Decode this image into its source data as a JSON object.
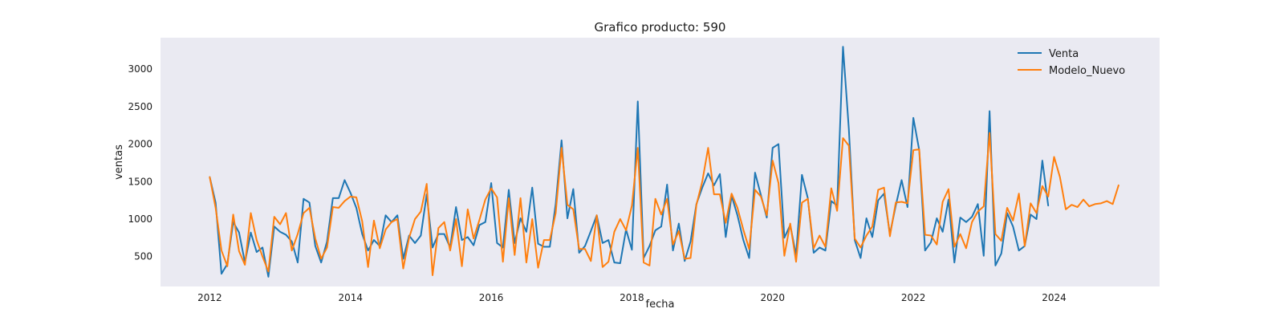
{
  "chart_data": {
    "type": "line",
    "title": "Grafico producto: 590",
    "xlabel": "fecha",
    "ylabel": "ventas",
    "xlim": [
      2011.3,
      2025.5
    ],
    "ylim": [
      100,
      3420
    ],
    "xticks": [
      2012,
      2014,
      2016,
      2018,
      2020,
      2022,
      2024
    ],
    "yticks": [
      500,
      1000,
      1500,
      2000,
      2500,
      3000
    ],
    "grid": false,
    "legend_position": "top-right",
    "colors": {
      "background": "#eaeaf2",
      "Venta": "#1f77b4",
      "Modelo_Nuevo": "#ff7f0e"
    },
    "x_start": 2012,
    "x_step_months": 1,
    "series": [
      {
        "name": "Venta",
        "values": [
          1560,
          1220,
          270,
          400,
          960,
          820,
          420,
          820,
          560,
          620,
          230,
          900,
          830,
          790,
          700,
          420,
          1270,
          1220,
          640,
          420,
          700,
          1280,
          1280,
          1520,
          1350,
          1150,
          800,
          580,
          720,
          640,
          1050,
          960,
          1050,
          470,
          780,
          680,
          780,
          1330,
          620,
          800,
          800,
          620,
          1160,
          720,
          760,
          650,
          920,
          960,
          1480,
          680,
          620,
          1390,
          680,
          1010,
          830,
          1420,
          670,
          630,
          630,
          1200,
          2050,
          1010,
          1400,
          550,
          640,
          840,
          1050,
          680,
          720,
          420,
          410,
          860,
          590,
          2570,
          480,
          640,
          850,
          900,
          1460,
          580,
          940,
          440,
          700,
          1200,
          1420,
          1610,
          1450,
          1600,
          760,
          1310,
          1050,
          720,
          480,
          1620,
          1320,
          1020,
          1950,
          2000,
          750,
          920,
          520,
          1590,
          1280,
          550,
          620,
          580,
          1240,
          1180,
          3300,
          2200,
          720,
          480,
          1010,
          760,
          1250,
          1340,
          800,
          1180,
          1520,
          1160,
          2350,
          1920,
          580,
          690,
          1010,
          830,
          1260,
          420,
          1020,
          960,
          1030,
          1200,
          510,
          2440,
          380,
          540,
          1080,
          900,
          580,
          640,
          1060,
          1000,
          1780,
          1180
        ]
      },
      {
        "name": "Modelo_Nuevo",
        "values": [
          1560,
          1150,
          580,
          370,
          1060,
          570,
          390,
          1080,
          720,
          500,
          300,
          1030,
          930,
          1080,
          580,
          800,
          1080,
          1150,
          740,
          470,
          620,
          1160,
          1150,
          1240,
          1300,
          1290,
          970,
          360,
          980,
          610,
          860,
          960,
          1000,
          340,
          750,
          1000,
          1100,
          1470,
          250,
          880,
          960,
          580,
          1000,
          370,
          1130,
          740,
          990,
          1260,
          1410,
          1290,
          430,
          1280,
          520,
          1280,
          420,
          1000,
          350,
          720,
          720,
          1080,
          1950,
          1190,
          1130,
          600,
          600,
          440,
          1050,
          360,
          430,
          830,
          1000,
          850,
          1180,
          1950,
          420,
          380,
          1270,
          1060,
          1270,
          660,
          840,
          470,
          480,
          1190,
          1500,
          1950,
          1330,
          1330,
          950,
          1340,
          1150,
          860,
          600,
          1390,
          1300,
          1050,
          1780,
          1480,
          510,
          940,
          430,
          1220,
          1270,
          610,
          780,
          630,
          1410,
          1110,
          2080,
          1980,
          740,
          620,
          780,
          900,
          1390,
          1420,
          770,
          1220,
          1230,
          1210,
          1920,
          1930,
          790,
          780,
          660,
          1230,
          1400,
          630,
          800,
          610,
          960,
          1100,
          1170,
          2150,
          800,
          710,
          1150,
          980,
          1340,
          640,
          1210,
          1080,
          1440,
          1300,
          1830,
          1560,
          1130,
          1190,
          1160,
          1260,
          1170,
          1200,
          1210,
          1240,
          1200,
          1450
        ]
      }
    ]
  }
}
